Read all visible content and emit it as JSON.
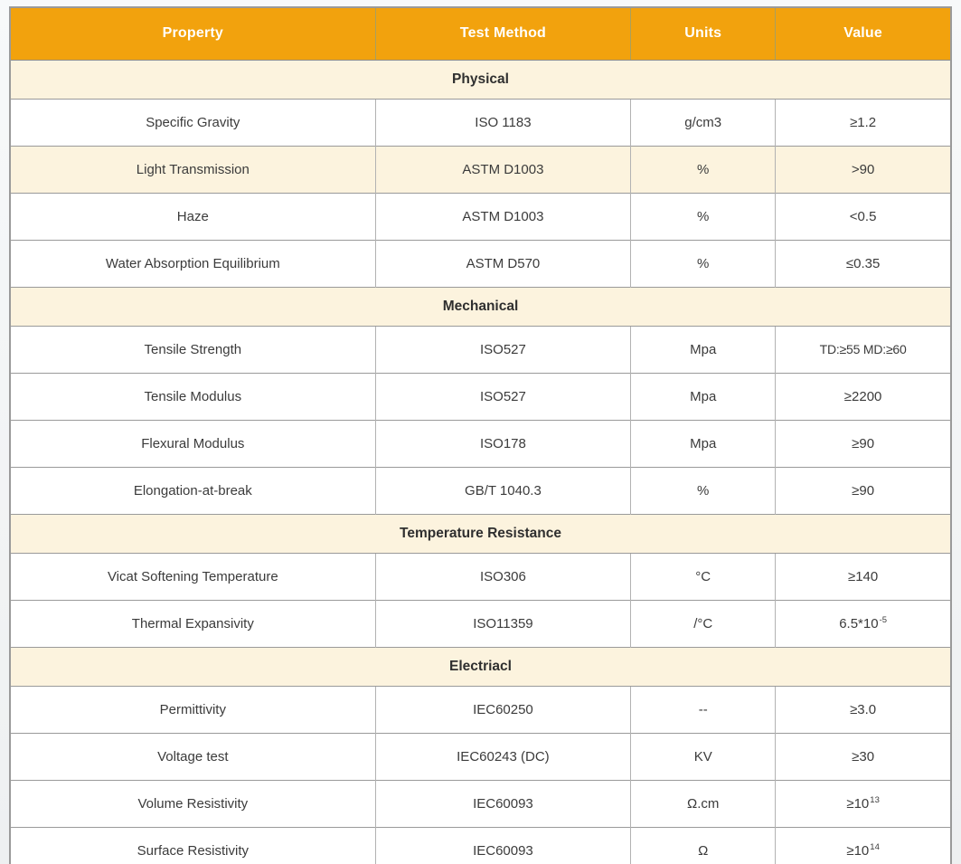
{
  "colors": {
    "header_bg": "#F2A20D",
    "header_text": "#FFFFFF",
    "section_bg": "#FCF3DE",
    "row_highlight_bg": "#FCF3DE",
    "border_outer": "#9A9A9A",
    "border_inner": "#B2B2B2",
    "cell_text": "#3B3B3B"
  },
  "table": {
    "columns": [
      "Property",
      "Test Method",
      "Units",
      "Value"
    ],
    "rows": [
      {
        "type": "section",
        "label": "Physical"
      },
      {
        "type": "data",
        "property": "Specific Gravity",
        "method": "ISO 1183",
        "units": "g/cm3",
        "value": "≥1.2"
      },
      {
        "type": "data",
        "property": "Light Transmission",
        "method": "ASTM D1003",
        "units": "%",
        "value": ">90",
        "highlight": true
      },
      {
        "type": "data",
        "property": "Haze",
        "method": "ASTM D1003",
        "units": "%",
        "value": "<0.5"
      },
      {
        "type": "data",
        "property": "Water Absorption Equilibrium",
        "method": "ASTM D570",
        "units": "%",
        "value": "≤0.35"
      },
      {
        "type": "section",
        "label": "Mechanical"
      },
      {
        "type": "data",
        "property": "Tensile Strength",
        "method": "ISO527",
        "units": "Mpa",
        "value": "TD:≥55  MD:≥60"
      },
      {
        "type": "data",
        "property": "Tensile Modulus",
        "method": "ISO527",
        "units": "Mpa",
        "value": "≥2200"
      },
      {
        "type": "data",
        "property": "Flexural Modulus",
        "method": "ISO178",
        "units": "Mpa",
        "value": "≥90"
      },
      {
        "type": "data",
        "property": "Elongation-at-break",
        "method": "GB/T 1040.3",
        "units": "%",
        "value": "≥90"
      },
      {
        "type": "section",
        "label": "Temperature Resistance"
      },
      {
        "type": "data",
        "property": "Vicat Softening Temperature",
        "method": "ISO306",
        "units": "°C",
        "value": "≥140"
      },
      {
        "type": "data",
        "property": "Thermal Expansivity",
        "method": "ISO11359",
        "units": "/°C",
        "value_base": "6.5*10",
        "value_sup": "-5"
      },
      {
        "type": "section",
        "label": "Electriacl"
      },
      {
        "type": "data",
        "property": "Permittivity",
        "method": "IEC60250",
        "units": "--",
        "value": "≥3.0"
      },
      {
        "type": "data",
        "property": "Voltage test",
        "method": "IEC60243 (DC)",
        "units": "KV",
        "value": "≥30"
      },
      {
        "type": "data",
        "property": "Volume Resistivity",
        "method": "IEC60093",
        "units": "Ω.cm",
        "value_base": "≥10",
        "value_sup": "13"
      },
      {
        "type": "data",
        "property": "Surface Resistivity",
        "method": "IEC60093",
        "units": "Ω",
        "value_base": "≥10",
        "value_sup": "14"
      }
    ]
  }
}
